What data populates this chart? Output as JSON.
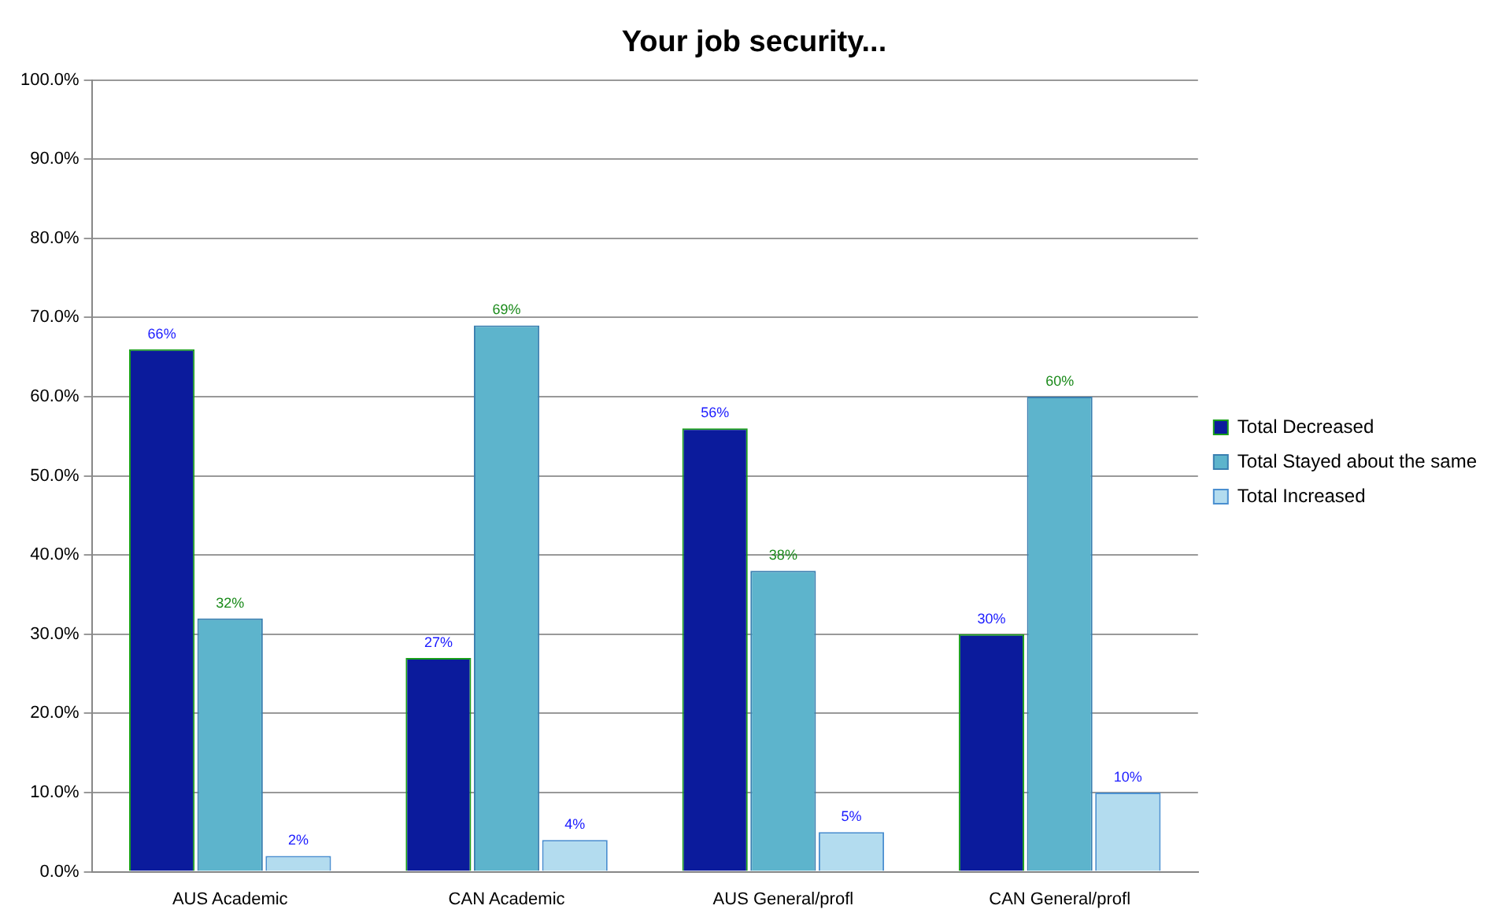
{
  "chart_data": {
    "type": "bar",
    "title": "Your job security...",
    "categories": [
      "AUS Academic",
      "CAN Academic",
      "AUS General/profl",
      "CAN General/profl"
    ],
    "series": [
      {
        "name": "Total Decreased",
        "color": "#0b1b9c",
        "values": [
          66,
          27,
          56,
          30
        ],
        "value_labels": [
          "66%",
          "27%",
          "56%",
          "30%"
        ]
      },
      {
        "name": "Total Stayed about the same",
        "color": "#5db4cc",
        "values": [
          32,
          69,
          38,
          60
        ],
        "value_labels": [
          "32%",
          "69%",
          "38%",
          "60%"
        ]
      },
      {
        "name": "Total Increased",
        "color": "#b3dcef",
        "values": [
          2,
          4,
          5,
          10
        ],
        "value_labels": [
          "2%",
          "4%",
          "5%",
          "10%"
        ]
      }
    ],
    "ylim": [
      0,
      100
    ],
    "yticks": [
      {
        "value": 0,
        "label": "0.0%"
      },
      {
        "value": 10,
        "label": "10.0%"
      },
      {
        "value": 20,
        "label": "20.0%"
      },
      {
        "value": 30,
        "label": "30.0%"
      },
      {
        "value": 40,
        "label": "40.0%"
      },
      {
        "value": 50,
        "label": "50.0%"
      },
      {
        "value": 60,
        "label": "60.0%"
      },
      {
        "value": 70,
        "label": "70.0%"
      },
      {
        "value": 80,
        "label": "80.0%"
      },
      {
        "value": 90,
        "label": "90.0%"
      },
      {
        "value": 100,
        "label": "100.0%"
      }
    ],
    "grid": "y",
    "legend": "right"
  }
}
